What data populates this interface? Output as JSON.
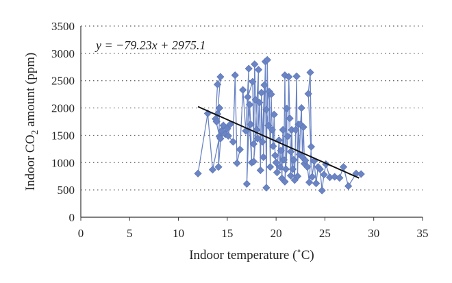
{
  "chart_data": {
    "type": "line",
    "xlabel": "Indoor temperature (˚C)",
    "ylabel_parts": [
      "Indoor CO",
      "2",
      " amount (ppm)"
    ],
    "equation": "y = −79.23x + 2975.1",
    "xlim": [
      0,
      35
    ],
    "ylim": [
      0,
      3500
    ],
    "x_ticks": [
      0,
      5,
      10,
      15,
      20,
      25,
      30,
      35
    ],
    "y_ticks": [
      0,
      500,
      1000,
      1500,
      2000,
      2500,
      3000,
      3500
    ],
    "grid": "horizontal-dotted",
    "series": [
      {
        "marker": "diamond",
        "color": "#6a84c4",
        "x": [
          12.0,
          13.0,
          13.5,
          14.2,
          13.8,
          14.0,
          14.3,
          14.0,
          13.9,
          14.2,
          14.1,
          14.4,
          14.6,
          14.3,
          15.0,
          14.8,
          15.3,
          15.1,
          15.6,
          15.8,
          16.0,
          16.3,
          16.6,
          16.9,
          17.2,
          17.0,
          17.3,
          17.4,
          17.5,
          17.1,
          17.6,
          17.7,
          17.8,
          17.9,
          18.0,
          17.7,
          18.2,
          18.1,
          18.3,
          18.4,
          18.5,
          18.6,
          18.8,
          18.7,
          18.9,
          19.0,
          19.1,
          19.2,
          19.0,
          19.3,
          19.4,
          19.5,
          19.6,
          19.7,
          19.8,
          19.9,
          20.0,
          20.1,
          20.3,
          20.4,
          20.5,
          20.6,
          20.7,
          20.8,
          20.9,
          21.0,
          21.1,
          20.9,
          21.2,
          21.3,
          21.4,
          21.5,
          21.6,
          21.7,
          21.5,
          21.8,
          21.9,
          22.0,
          22.1,
          22.2,
          22.3,
          22.4,
          22.5,
          22.6,
          22.7,
          22.8,
          22.9,
          23.0,
          23.2,
          23.4,
          23.6,
          23.5,
          23.3,
          23.7,
          23.9,
          24.1,
          24.3,
          24.5,
          24.7,
          24.9,
          25.1,
          25.5,
          26.0,
          26.5,
          26.9,
          27.4,
          28.2,
          28.7
        ],
        "y": [
          800,
          1900,
          870,
          1480,
          1800,
          2430,
          2570,
          1890,
          1750,
          2000,
          920,
          1580,
          1680,
          1440,
          1620,
          1520,
          1700,
          1490,
          1380,
          2600,
          990,
          1240,
          2330,
          1580,
          2720,
          610,
          2060,
          1700,
          1000,
          2200,
          2480,
          1340,
          2800,
          2150,
          1600,
          1020,
          2700,
          1440,
          2100,
          860,
          2280,
          1380,
          2420,
          1100,
          2850,
          540,
          2880,
          1680,
          1970,
          2300,
          920,
          2250,
          1600,
          1300,
          1880,
          1130,
          1000,
          820,
          1410,
          920,
          1220,
          710,
          1600,
          1050,
          2600,
          880,
          1990,
          650,
          1480,
          2570,
          1810,
          760,
          1600,
          880,
          1200,
          1050,
          680,
          1600,
          2580,
          750,
          1700,
          1150,
          1700,
          2000,
          1100,
          1650,
          980,
          1040,
          920,
          640,
          1290,
          2650,
          2260,
          740,
          1030,
          620,
          920,
          880,
          490,
          780,
          970,
          730,
          740,
          720,
          920,
          570,
          800,
          790
        ]
      }
    ],
    "trendline": {
      "slope": -79.23,
      "intercept": 2975.1,
      "x_range": [
        12,
        28.5
      ],
      "color": "#111111"
    }
  }
}
